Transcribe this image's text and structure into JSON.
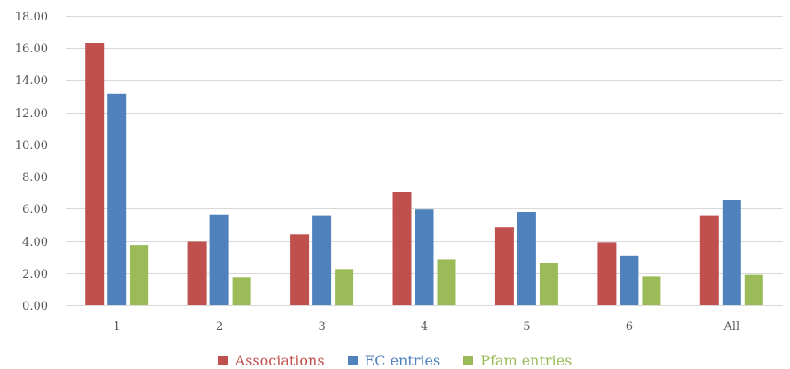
{
  "chart_data": {
    "type": "bar",
    "categories": [
      "1",
      "2",
      "3",
      "4",
      "5",
      "6",
      "All"
    ],
    "series": [
      {
        "name": "Associations",
        "values": [
          16.3,
          3.95,
          4.4,
          7.05,
          4.85,
          3.9,
          5.6
        ],
        "color": "#c0504d"
      },
      {
        "name": "EC entries",
        "values": [
          13.15,
          5.65,
          5.6,
          5.95,
          5.8,
          3.05,
          6.55
        ],
        "color": "#4f81bd"
      },
      {
        "name": "Pfam entries",
        "values": [
          3.75,
          1.75,
          2.25,
          2.85,
          2.65,
          1.8,
          1.9
        ],
        "color": "#9bbb59"
      }
    ],
    "yticks": [
      "0.00",
      "2.00",
      "4.00",
      "6.00",
      "8.00",
      "10.00",
      "12.00",
      "14.00",
      "16.00",
      "18.00"
    ],
    "ylim": [
      0,
      18
    ],
    "grid": true,
    "legend_position": "bottom",
    "gridline_color": "#d9d9d9",
    "text_color": "#595959"
  }
}
